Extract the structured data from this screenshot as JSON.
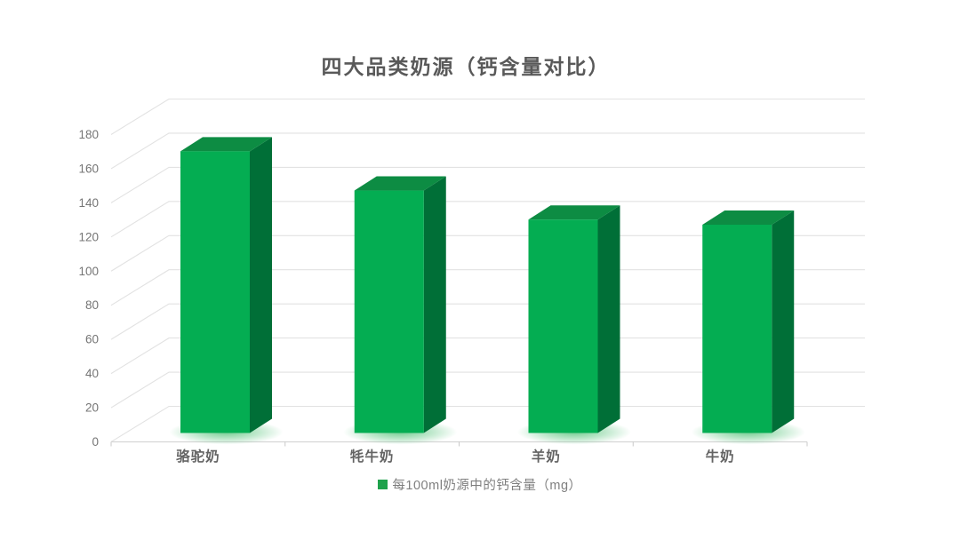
{
  "title": "四大品类奶源（钙含量对比）",
  "legend": {
    "items": [
      {
        "label": "每100ml奶源中的钙含量（mg）",
        "color": "#1FA24C"
      }
    ]
  },
  "chart_data": {
    "type": "bar",
    "style": "3d-column",
    "title": "四大品类奶源（钙含量对比）",
    "categories": [
      "骆驼奶",
      "牦牛奶",
      "羊奶",
      "牛奶"
    ],
    "series": [
      {
        "name": "每100ml奶源中的钙含量（mg）",
        "values": [
          165,
          142,
          125,
          122
        ]
      }
    ],
    "xlabel": "",
    "ylabel": "",
    "ylim": [
      0,
      180
    ],
    "yticks": [
      0,
      20,
      40,
      60,
      80,
      100,
      120,
      140,
      160,
      180
    ],
    "grid": true,
    "legend_position": "bottom",
    "colors": {
      "bar_front": "#04AD52",
      "bar_top": "#0D8C43",
      "bar_side": "#006F37",
      "bar_glow": "#5BC57E",
      "gridline": "#E2E2E2",
      "axis_line": "#D6D6D6",
      "tick_mark": "#C9C9C9",
      "ytick_text": "#757575",
      "category_text": "#636363",
      "title_text": "#595959",
      "legend_text": "#7f7f7f"
    }
  }
}
